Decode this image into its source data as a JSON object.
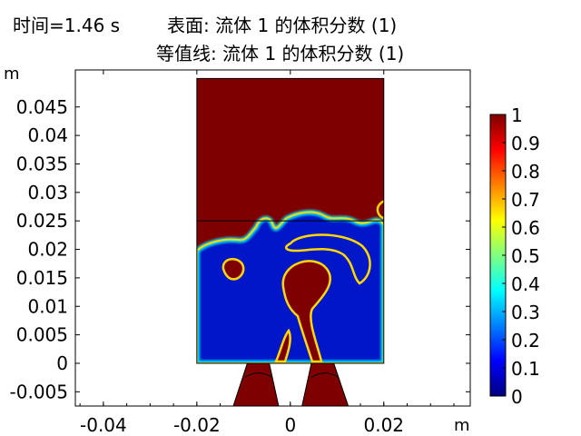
{
  "header": {
    "time_label": "时间=1.46 s",
    "surface_label": "表面: 流体 1 的体积分数 (1)",
    "contour_label": "等值线: 流体 1 的体积分数 (1)"
  },
  "chart_data": {
    "type": "heatmap",
    "title": "表面: 流体 1 的体积分数 (1)",
    "subtitle": "等值线: 流体 1 的体积分数 (1)",
    "time": "时间=1.46 s",
    "xlabel": "m",
    "ylabel": "m",
    "xlim": [
      -0.046,
      0.0385
    ],
    "ylim": [
      -0.0075,
      0.0515
    ],
    "xticks": [
      "-0.04",
      "-0.02",
      "0",
      "0.02"
    ],
    "xtick_values": [
      -0.04,
      -0.02,
      0,
      0.02
    ],
    "yticks": [
      "-0.005",
      "0",
      "0.005",
      "0.01",
      "0.015",
      "0.02",
      "0.025",
      "0.03",
      "0.035",
      "0.04",
      "0.045"
    ],
    "ytick_values": [
      -0.005,
      0,
      0.005,
      0.01,
      0.015,
      0.02,
      0.025,
      0.03,
      0.035,
      0.04,
      0.045
    ],
    "colorbar": {
      "ticks": [
        "0",
        "0.1",
        "0.2",
        "0.3",
        "0.4",
        "0.5",
        "0.6",
        "0.7",
        "0.8",
        "0.9",
        "1"
      ],
      "tick_values": [
        0,
        0.1,
        0.2,
        0.3,
        0.4,
        0.5,
        0.6,
        0.7,
        0.8,
        0.9,
        1
      ],
      "range": [
        0,
        1
      ],
      "colormap": [
        "#00007f",
        "#0000ff",
        "#0080ff",
        "#00ffff",
        "#80ff80",
        "#ffff00",
        "#ff8000",
        "#ff0000",
        "#7f0000"
      ]
    },
    "domain": {
      "tank": {
        "x": [
          -0.02,
          0.02
        ],
        "y": [
          0,
          0.05
        ]
      },
      "nozzle_left": [
        [
          -0.0092,
          0
        ],
        [
          -0.0045,
          0
        ],
        [
          -0.0025,
          -0.0075
        ],
        [
          -0.0122,
          -0.0075
        ]
      ],
      "nozzle_right": [
        [
          0.0045,
          0
        ],
        [
          0.0093,
          0
        ],
        [
          0.0124,
          -0.0075
        ],
        [
          0.0025,
          -0.0075
        ]
      ],
      "interface_level_y": 0.025
    },
    "phases": {
      "upper_value": 1,
      "lower_value": 0
    },
    "colors": {
      "fluid_high": "#7f0000",
      "fluid_low": "#0018c8",
      "interface": "#ffe000"
    }
  }
}
